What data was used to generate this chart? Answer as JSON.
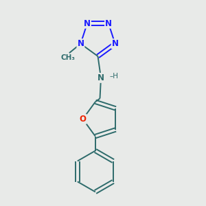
{
  "background_color": "#e8eae8",
  "bond_color": "#2d6b6b",
  "N_color": "#1a1aff",
  "O_color": "#ee2200",
  "figsize": [
    3.0,
    3.0
  ],
  "dpi": 100,
  "xlim": [
    0,
    10
  ],
  "ylim": [
    0,
    10
  ]
}
